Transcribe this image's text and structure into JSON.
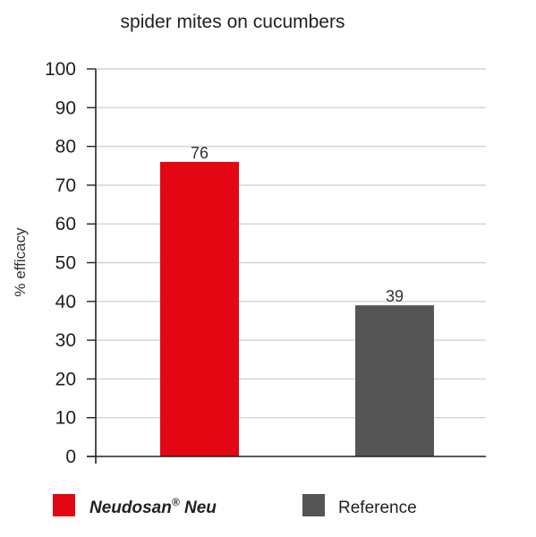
{
  "chart_data": {
    "type": "bar",
    "title": "spider mites on cucumbers",
    "ylabel": "% efficacy",
    "xlabel": "",
    "ylim": [
      0,
      100
    ],
    "yticks": [
      0,
      10,
      20,
      30,
      40,
      50,
      60,
      70,
      80,
      90,
      100
    ],
    "grid": true,
    "legend_position": "bottom",
    "categories": [
      "Neudosan® Neu",
      "Reference"
    ],
    "values": [
      76,
      39
    ],
    "data_labels": [
      "76",
      "39"
    ],
    "colors": [
      "#e30613",
      "#555555"
    ],
    "legend": [
      {
        "name": "Neudosan",
        "mark": "®",
        "suffix": " Neu",
        "color": "#e30613"
      },
      {
        "name": "Reference",
        "color": "#555555"
      }
    ]
  }
}
